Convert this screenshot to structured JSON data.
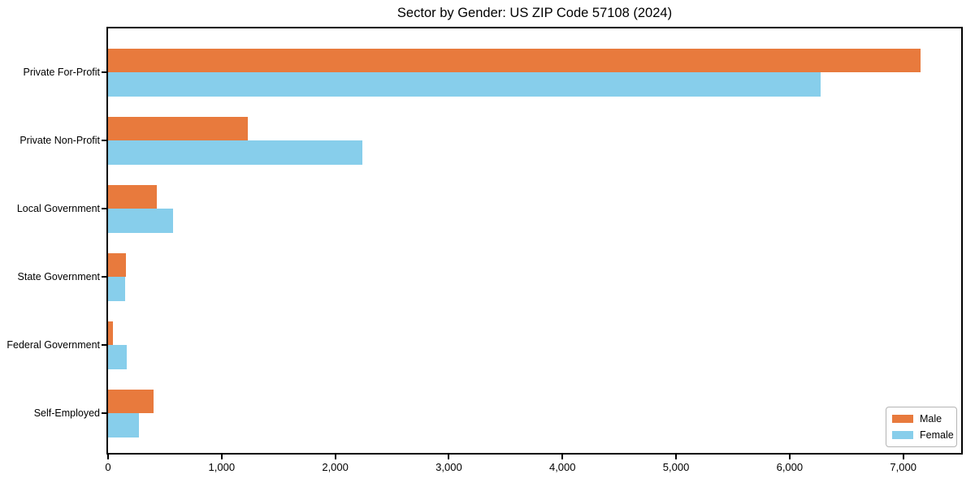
{
  "chart_data": {
    "type": "bar",
    "orientation": "horizontal",
    "title": "Sector by Gender: US ZIP Code 57108 (2024)",
    "categories": [
      "Private For-Profit",
      "Private Non-Profit",
      "Local Government",
      "State Government",
      "Federal Government",
      "Self-Employed"
    ],
    "series": [
      {
        "name": "Male",
        "color": "#E87A3D",
        "values": [
          7150,
          1230,
          430,
          158,
          45,
          400
        ]
      },
      {
        "name": "Female",
        "color": "#87CEEB",
        "values": [
          6270,
          2240,
          570,
          150,
          165,
          275
        ]
      }
    ],
    "xlabel": "",
    "ylabel": "",
    "xlim": [
      0,
      7510
    ],
    "xticks": [
      0,
      1000,
      2000,
      3000,
      4000,
      5000,
      6000,
      7000
    ],
    "xtick_labels": [
      "0",
      "1,000",
      "2,000",
      "3,000",
      "4,000",
      "5,000",
      "6,000",
      "7,000"
    ],
    "grid": false,
    "legend_position": "lower right",
    "plot_border_color": "#000000",
    "background_color": "#ffffff"
  }
}
